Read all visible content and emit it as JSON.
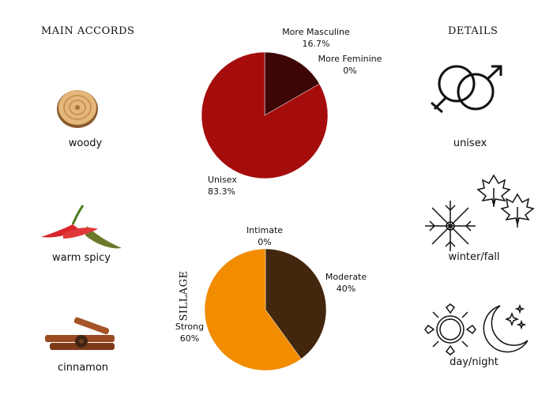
{
  "main_accords": {
    "heading": "MAIN ACCORDS",
    "items": [
      {
        "label": "woody",
        "icon": "wood-slice-icon"
      },
      {
        "label": "warm spicy",
        "icon": "chili-pepper-icon"
      },
      {
        "label": "cinnamon",
        "icon": "cinnamon-sticks-icon"
      }
    ]
  },
  "details": {
    "heading": "DETAILS",
    "items": [
      {
        "label": "unisex",
        "icon": "gender-symbols-icon"
      },
      {
        "label": "winter/fall",
        "icon": "snowflake-leaves-icon"
      },
      {
        "label": "day/night",
        "icon": "sun-moon-icon"
      }
    ]
  },
  "chart_data": [
    {
      "type": "pie",
      "start_angle": "top",
      "direction": "clockwise",
      "slices": [
        {
          "label": "More Masculine",
          "value": 16.7,
          "display": "16.7%",
          "color": "#3d0606"
        },
        {
          "label": "More Feminine",
          "value": 0,
          "display": "0%",
          "color": "#a50c0c"
        },
        {
          "label": "Unisex",
          "value": 83.3,
          "display": "83.3%",
          "color": "#a50c0c"
        }
      ]
    },
    {
      "type": "pie",
      "title": "SILLAGE",
      "start_angle": "top",
      "direction": "clockwise",
      "slices": [
        {
          "label": "Intimate",
          "value": 0,
          "display": "0%",
          "color": "#42270e"
        },
        {
          "label": "Moderate",
          "value": 40,
          "display": "40%",
          "color": "#42270e"
        },
        {
          "label": "Strong",
          "value": 60,
          "display": "60%",
          "color": "#f28c00"
        }
      ]
    }
  ]
}
